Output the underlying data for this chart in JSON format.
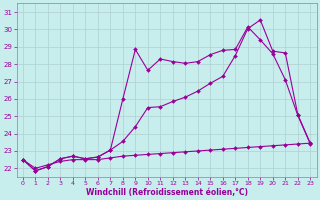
{
  "xlabel": "Windchill (Refroidissement éolien,°C)",
  "xlim": [
    -0.5,
    23.5
  ],
  "ylim": [
    21.5,
    31.5
  ],
  "xticks": [
    0,
    1,
    2,
    3,
    4,
    5,
    6,
    7,
    8,
    9,
    10,
    11,
    12,
    13,
    14,
    15,
    16,
    17,
    18,
    19,
    20,
    21,
    22,
    23
  ],
  "yticks": [
    22,
    23,
    24,
    25,
    26,
    27,
    28,
    29,
    30,
    31
  ],
  "bg_color": "#c8eded",
  "grid_color": "#b0d0d0",
  "line_color": "#990099",
  "line1_x": [
    0,
    1,
    2,
    3,
    4,
    5,
    6,
    7,
    8,
    9,
    10,
    11,
    12,
    13,
    14,
    15,
    16,
    17,
    18,
    19,
    20,
    21,
    22,
    23
  ],
  "line1_y": [
    22.5,
    21.85,
    22.1,
    22.55,
    22.7,
    22.55,
    22.65,
    23.05,
    26.0,
    28.85,
    27.65,
    28.3,
    28.15,
    28.05,
    28.15,
    28.55,
    28.8,
    28.85,
    30.15,
    29.4,
    28.6,
    27.1,
    25.05,
    23.4
  ],
  "line2_x": [
    0,
    1,
    2,
    3,
    4,
    5,
    6,
    7,
    8,
    9,
    10,
    11,
    12,
    13,
    14,
    15,
    16,
    17,
    18,
    19,
    20,
    21,
    22,
    23
  ],
  "line2_y": [
    22.5,
    21.85,
    22.1,
    22.55,
    22.7,
    22.55,
    22.65,
    23.05,
    23.55,
    24.4,
    25.5,
    25.55,
    25.85,
    26.1,
    26.45,
    26.9,
    27.3,
    28.5,
    30.05,
    30.55,
    28.75,
    28.65,
    25.1,
    23.45
  ],
  "line3_x": [
    0,
    1,
    2,
    3,
    4,
    5,
    6,
    7,
    8,
    9,
    10,
    11,
    12,
    13,
    14,
    15,
    16,
    17,
    18,
    19,
    20,
    21,
    22,
    23
  ],
  "line3_y": [
    22.5,
    22.0,
    22.2,
    22.4,
    22.5,
    22.5,
    22.5,
    22.6,
    22.7,
    22.75,
    22.8,
    22.85,
    22.9,
    22.95,
    23.0,
    23.05,
    23.1,
    23.15,
    23.2,
    23.25,
    23.3,
    23.35,
    23.4,
    23.45
  ]
}
